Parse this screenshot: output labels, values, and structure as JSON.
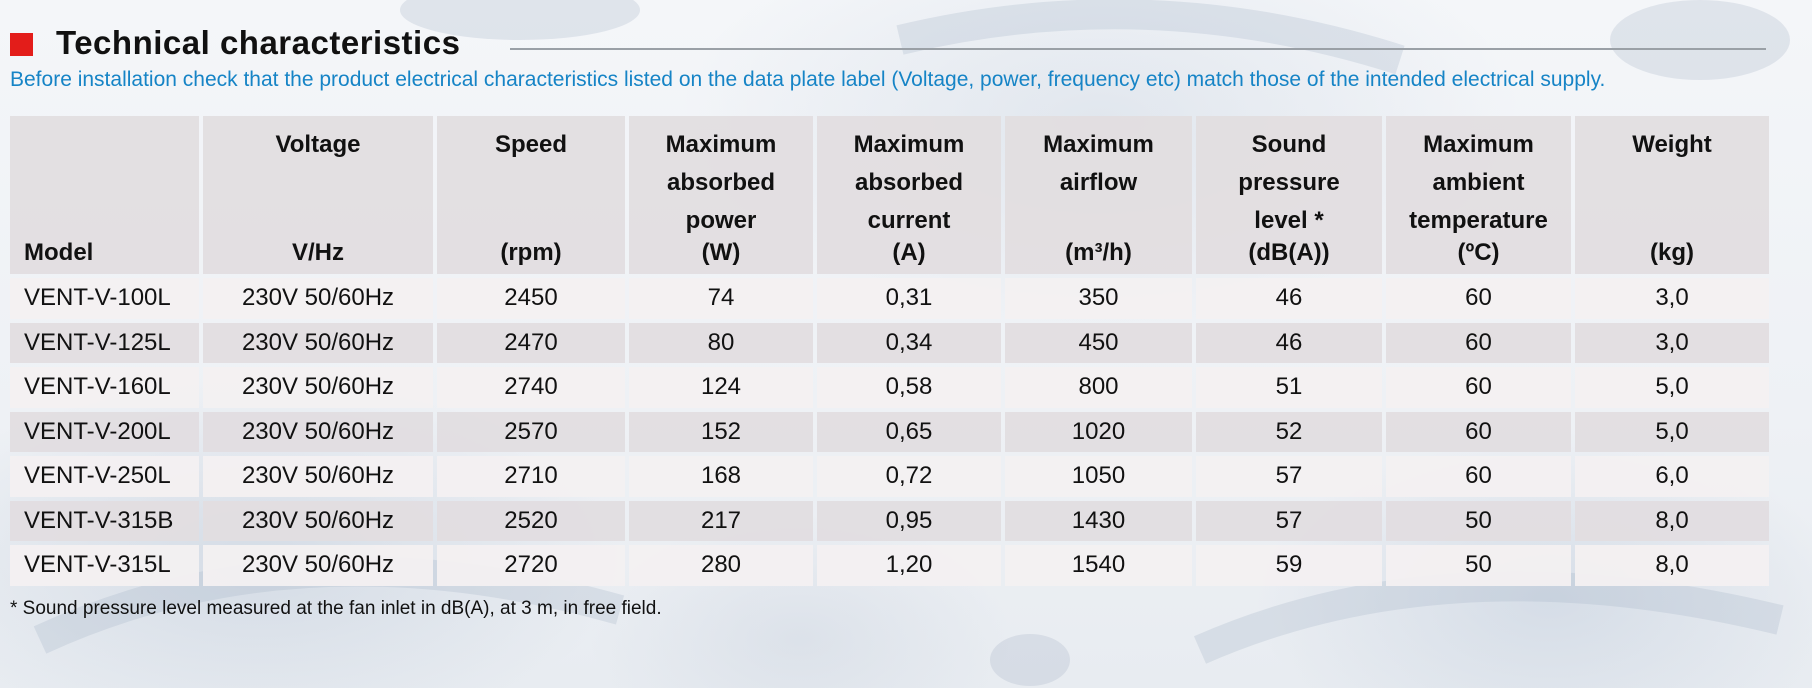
{
  "header": {
    "title": "Technical characteristics",
    "intro": "Before installation check that the product electrical characteristics listed on the data plate label (Voltage, power, frequency etc) match those of the intended electrical supply.",
    "accent_color": "#e31d1a",
    "intro_color": "#1684c6"
  },
  "table": {
    "columns": [
      {
        "label": "",
        "unit": "Model"
      },
      {
        "label": "Voltage",
        "unit": "V/Hz"
      },
      {
        "label": "Speed",
        "unit": "(rpm)"
      },
      {
        "label": "Maximum absorbed power",
        "unit": "(W)"
      },
      {
        "label": "Maximum absorbed current",
        "unit": "(A)"
      },
      {
        "label": "Maximum airflow",
        "unit": "(m³/h)"
      },
      {
        "label": "Sound pressure level *",
        "unit": "(dB(A))"
      },
      {
        "label": "Maximum ambient temperature",
        "unit": "(ºC)"
      },
      {
        "label": "Weight",
        "unit": "(kg)"
      }
    ],
    "rows": [
      [
        "VENT-V-100L",
        "230V 50/60Hz",
        "2450",
        "74",
        "0,31",
        "350",
        "46",
        "60",
        "3,0"
      ],
      [
        "VENT-V-125L",
        "230V 50/60Hz",
        "2470",
        "80",
        "0,34",
        "450",
        "46",
        "60",
        "3,0"
      ],
      [
        "VENT-V-160L",
        "230V 50/60Hz",
        "2740",
        "124",
        "0,58",
        "800",
        "51",
        "60",
        "5,0"
      ],
      [
        "VENT-V-200L",
        "230V 50/60Hz",
        "2570",
        "152",
        "0,65",
        "1020",
        "52",
        "60",
        "5,0"
      ],
      [
        "VENT-V-250L",
        "230V 50/60Hz",
        "2710",
        "168",
        "0,72",
        "1050",
        "57",
        "60",
        "6,0"
      ],
      [
        "VENT-V-315B",
        "230V 50/60Hz",
        "2520",
        "217",
        "0,95",
        "1430",
        "57",
        "50",
        "8,0"
      ],
      [
        "VENT-V-315L",
        "230V 50/60Hz",
        "2720",
        "280",
        "1,20",
        "1540",
        "59",
        "50",
        "8,0"
      ]
    ]
  },
  "footnote": "* Sound pressure level measured at the fan inlet in dB(A), at 3 m, in free field."
}
